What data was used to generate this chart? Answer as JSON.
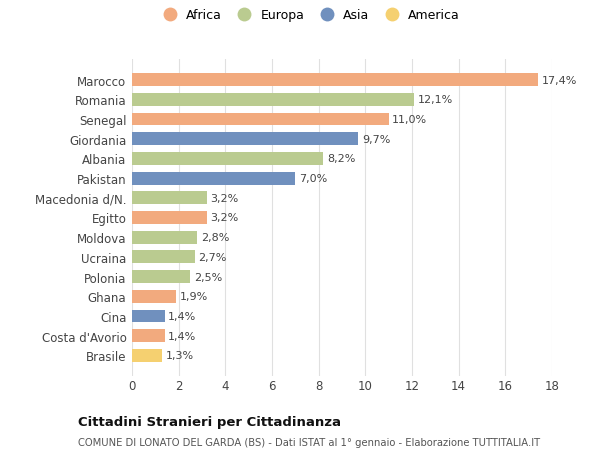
{
  "countries": [
    "Marocco",
    "Romania",
    "Senegal",
    "Giordania",
    "Albania",
    "Pakistan",
    "Macedonia d/N.",
    "Egitto",
    "Moldova",
    "Ucraina",
    "Polonia",
    "Ghana",
    "Cina",
    "Costa d'Avorio",
    "Brasile"
  ],
  "values": [
    17.4,
    12.1,
    11.0,
    9.7,
    8.2,
    7.0,
    3.2,
    3.2,
    2.8,
    2.7,
    2.5,
    1.9,
    1.4,
    1.4,
    1.3
  ],
  "labels": [
    "17,4%",
    "12,1%",
    "11,0%",
    "9,7%",
    "8,2%",
    "7,0%",
    "3,2%",
    "3,2%",
    "2,8%",
    "2,7%",
    "2,5%",
    "1,9%",
    "1,4%",
    "1,4%",
    "1,3%"
  ],
  "continents": [
    "Africa",
    "Europa",
    "Africa",
    "Asia",
    "Europa",
    "Asia",
    "Europa",
    "Africa",
    "Europa",
    "Europa",
    "Europa",
    "Africa",
    "Asia",
    "Africa",
    "America"
  ],
  "colors": {
    "Africa": "#F2AA7E",
    "Europa": "#BACB90",
    "Asia": "#7090BE",
    "America": "#F5D070"
  },
  "legend_order": [
    "Africa",
    "Europa",
    "Asia",
    "America"
  ],
  "title": "Cittadini Stranieri per Cittadinanza",
  "subtitle": "COMUNE DI LONATO DEL GARDA (BS) - Dati ISTAT al 1° gennaio - Elaborazione TUTTITALIA.IT",
  "xlim": [
    0,
    18
  ],
  "xticks": [
    0,
    2,
    4,
    6,
    8,
    10,
    12,
    14,
    16,
    18
  ],
  "bg_color": "#ffffff",
  "grid_color": "#e0e0e0"
}
